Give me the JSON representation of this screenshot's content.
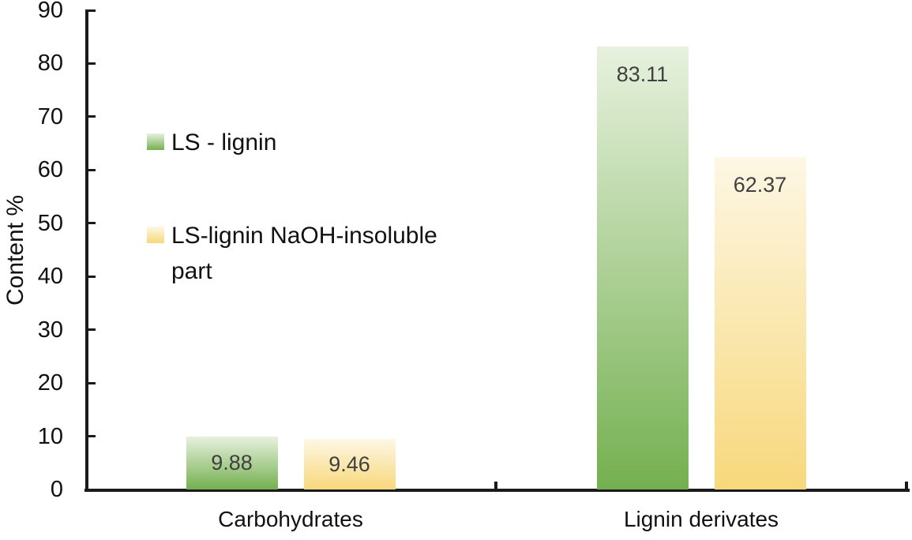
{
  "chart_data": {
    "type": "bar",
    "title": "",
    "xlabel": "",
    "ylabel": "Content %",
    "ylim": [
      0,
      90
    ],
    "yticks": [
      0,
      10,
      20,
      30,
      40,
      50,
      60,
      70,
      80,
      90
    ],
    "grid": false,
    "legend_position": "inside-top-left",
    "categories": [
      "Carbohydrates",
      "Lignin derivates"
    ],
    "series": [
      {
        "name": "LS - lignin",
        "name_lines": [
          "LS - lignin"
        ],
        "values": [
          9.88,
          83.11
        ],
        "data_labels": [
          "9.88",
          "83.11"
        ],
        "color_top": "#e7f1de",
        "color_bottom": "#74b050"
      },
      {
        "name": "LS-lignin NaOH-insoluble part",
        "name_lines": [
          "LS-lignin NaOH-insoluble",
          "part"
        ],
        "values": [
          9.46,
          62.37
        ],
        "data_labels": [
          "9.46",
          "62.37"
        ],
        "color_top": "#fdf7e4",
        "color_bottom": "#f8d87c"
      }
    ],
    "data_label_color": "#404040",
    "axis_color": "#1a1a1a",
    "text_color": "#111111"
  }
}
